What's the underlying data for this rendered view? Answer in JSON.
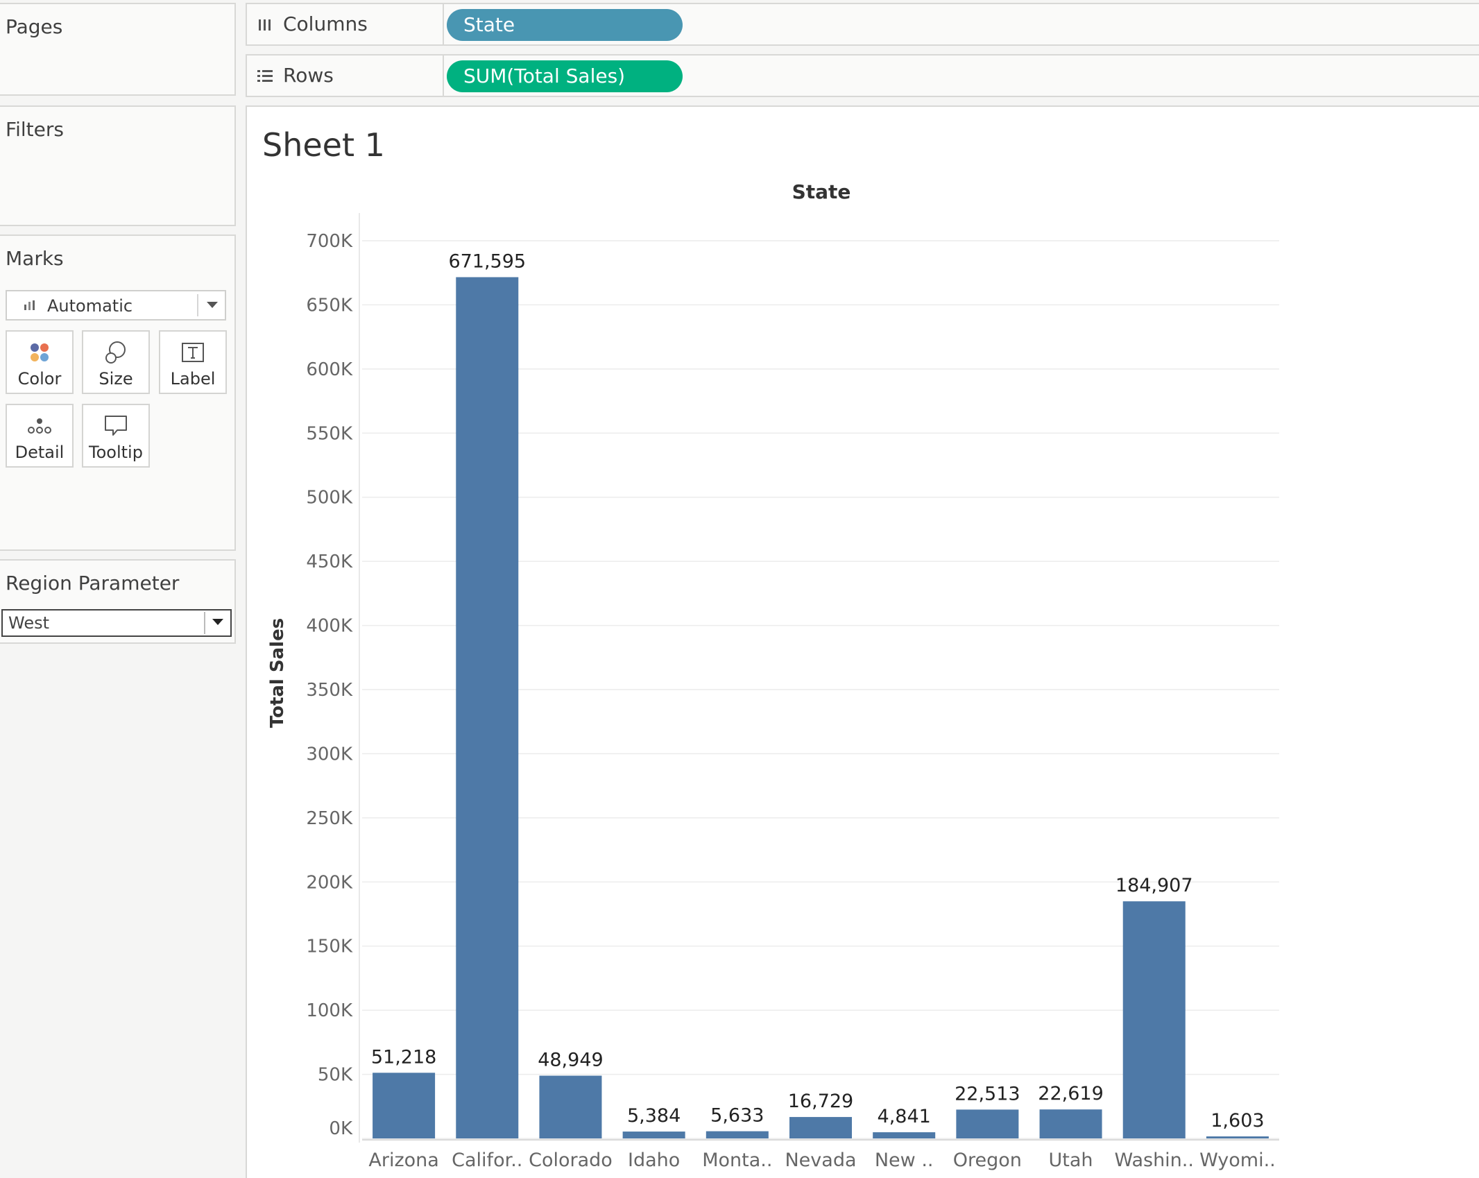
{
  "panels": {
    "pages": {
      "title": "Pages"
    },
    "filters": {
      "title": "Filters"
    },
    "marks": {
      "title": "Marks",
      "mark_type": "Automatic",
      "buttons": {
        "color": "Color",
        "size": "Size",
        "label": "Label",
        "detail": "Detail",
        "tooltip": "Tooltip"
      }
    },
    "region_parameter": {
      "title": "Region Parameter",
      "value": "West"
    }
  },
  "shelves": {
    "columns": {
      "label": "Columns",
      "pill": "State"
    },
    "rows": {
      "label": "Rows",
      "pill": "SUM(Total Sales)"
    }
  },
  "sheet": {
    "title": "Sheet 1"
  },
  "colors": {
    "bar": "#4e79a7",
    "columns_pill": "#4996b2",
    "rows_pill": "#00b180",
    "gridline": "#ececec"
  },
  "chart_data": {
    "type": "bar",
    "header": "State",
    "ylabel": "Total Sales",
    "categories": [
      "Arizona",
      "Califor..",
      "Colorado",
      "Idaho",
      "Monta..",
      "Nevada",
      "New ..",
      "Oregon",
      "Utah",
      "Washin..",
      "Wyomi.."
    ],
    "values": [
      51218,
      671595,
      48949,
      5384,
      5633,
      16729,
      4841,
      22513,
      22619,
      184907,
      1603
    ],
    "value_labels": [
      "51,218",
      "671,595",
      "48,949",
      "5,384",
      "5,633",
      "16,729",
      "4,841",
      "22,513",
      "22,619",
      "184,907",
      "1,603"
    ],
    "ylim": [
      0,
      700000
    ],
    "yticks": [
      0,
      50000,
      100000,
      150000,
      200000,
      250000,
      300000,
      350000,
      400000,
      450000,
      500000,
      550000,
      600000,
      650000,
      700000
    ],
    "ytick_labels": [
      "0K",
      "50K",
      "100K",
      "150K",
      "200K",
      "250K",
      "300K",
      "350K",
      "400K",
      "450K",
      "500K",
      "550K",
      "600K",
      "650K",
      "700K"
    ],
    "grid": true
  }
}
